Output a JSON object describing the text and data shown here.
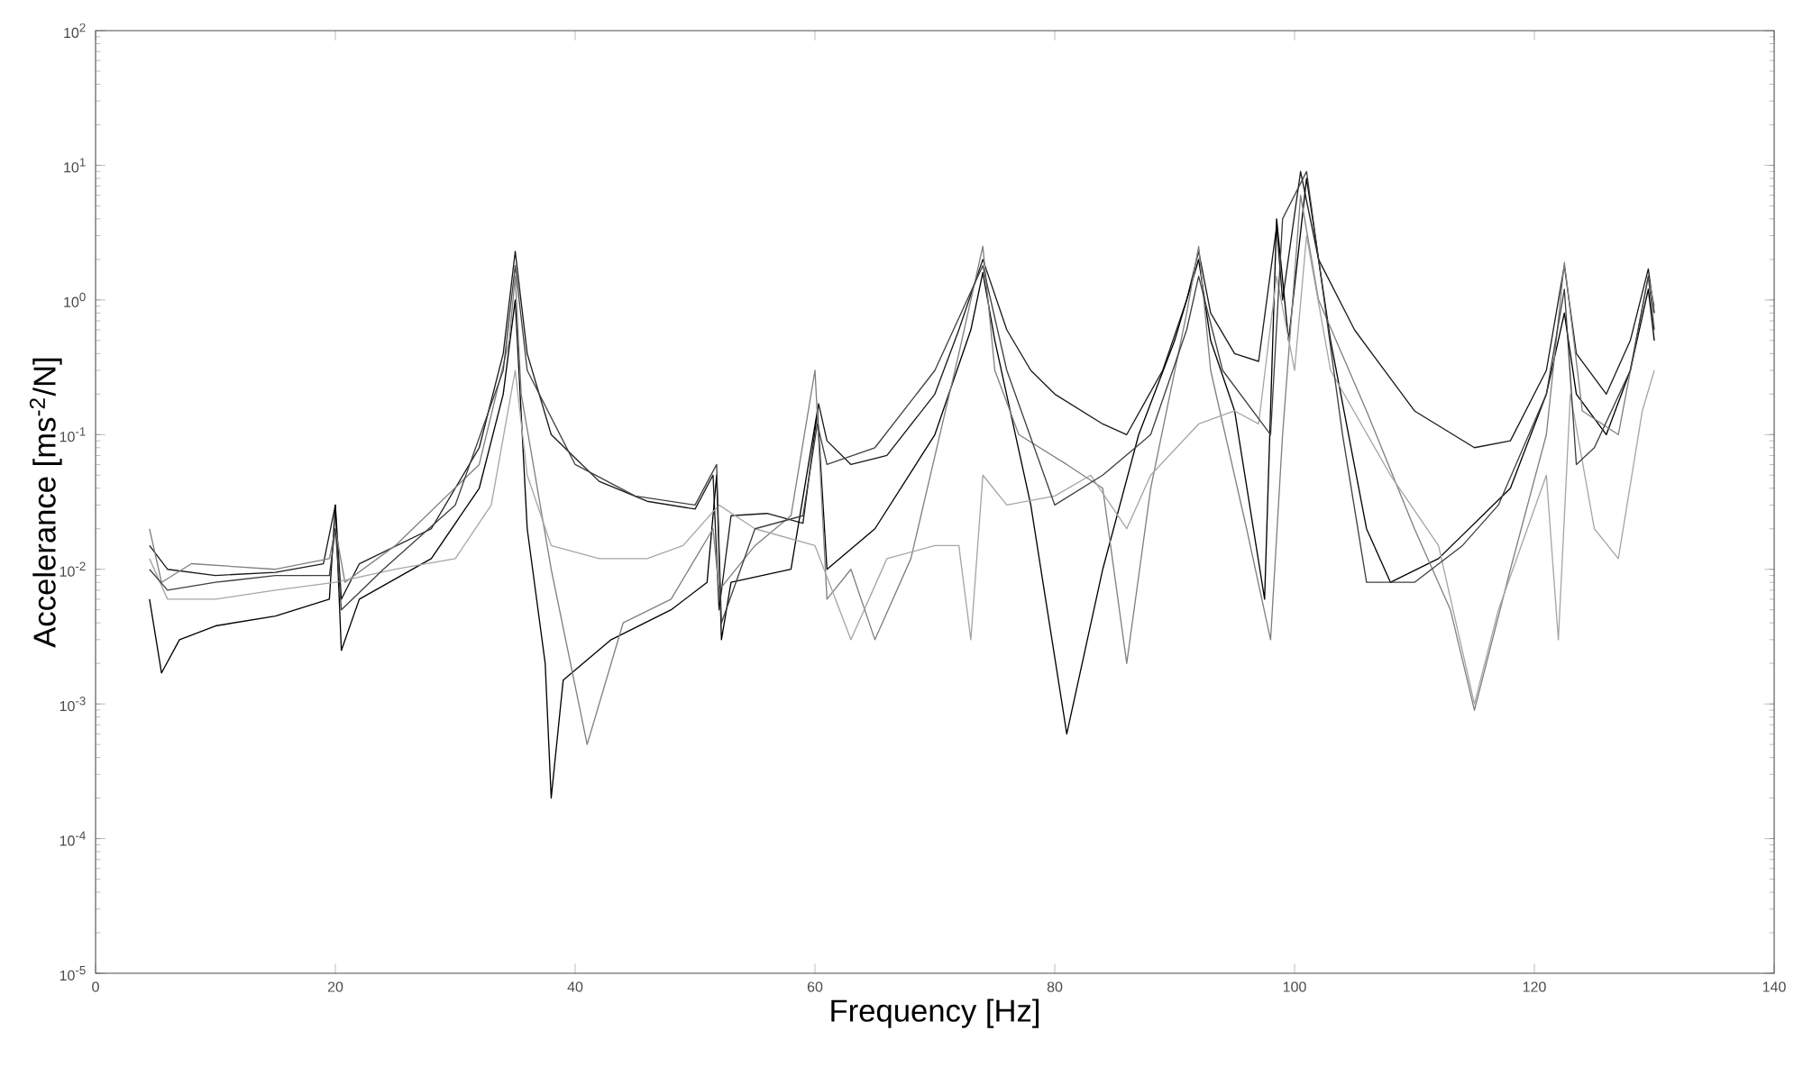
{
  "chart_data": {
    "type": "line",
    "xlabel": "Frequency [Hz]",
    "ylabel": "Accelerance [ms$^{-2}$/N]",
    "log": "y",
    "xlim": [
      0,
      140
    ],
    "xticks": [
      0,
      20,
      40,
      60,
      80,
      100,
      120,
      140
    ],
    "ylim": [
      1e-05,
      100
    ],
    "yticks": [
      {
        "value": 1e-05,
        "label": "10$^{-5}$"
      },
      {
        "value": 0.0001,
        "label": "10$^{-4}$"
      },
      {
        "value": 0.001,
        "label": "10$^{-3}$"
      },
      {
        "value": 0.01,
        "label": "10$^{-2}$"
      },
      {
        "value": 0.1,
        "label": "10$^{-1}$"
      },
      {
        "value": 1,
        "label": "10$^{0}$"
      },
      {
        "value": 10,
        "label": "10$^{1}$"
      },
      {
        "value": 100,
        "label": "10$^{2}$"
      }
    ],
    "series": [
      {
        "color": "#1a1a1a",
        "x": [
          4.5,
          6,
          10,
          15,
          19,
          20,
          20.5,
          22,
          28,
          32,
          34,
          35,
          36,
          38,
          42,
          46,
          50,
          51.5,
          52,
          53,
          56,
          59,
          60.3,
          61,
          63,
          66,
          70,
          72,
          74,
          76,
          78,
          80,
          84,
          86,
          89,
          91,
          92,
          93,
          95,
          97,
          98.5,
          99,
          100.5,
          102,
          105,
          110,
          115,
          118,
          121,
          122.5,
          123.5,
          126,
          128,
          129.5,
          130
        ],
        "values": [
          0.015,
          0.01,
          0.009,
          0.0095,
          0.011,
          0.03,
          0.006,
          0.011,
          0.02,
          0.08,
          0.4,
          2.3,
          0.4,
          0.1,
          0.045,
          0.032,
          0.028,
          0.05,
          0.005,
          0.025,
          0.026,
          0.022,
          0.17,
          0.09,
          0.06,
          0.07,
          0.2,
          0.6,
          2.0,
          0.6,
          0.3,
          0.2,
          0.12,
          0.1,
          0.3,
          1,
          2.3,
          0.8,
          0.4,
          0.35,
          3.5,
          1,
          9,
          2,
          0.6,
          0.15,
          0.08,
          0.09,
          0.3,
          1.8,
          0.4,
          0.2,
          0.5,
          1.7,
          0.8
        ]
      },
      {
        "color": "#000000",
        "x": [
          4.5,
          5.5,
          7,
          10,
          15,
          19.5,
          20,
          20.5,
          22,
          28,
          32,
          34,
          35,
          36,
          37.5,
          38,
          39,
          43,
          48,
          51,
          51.8,
          52.2,
          53,
          58,
          60.2,
          61,
          65,
          70,
          73,
          74,
          75,
          78,
          81,
          84,
          87,
          90,
          92,
          93,
          95,
          97.5,
          98.5,
          99.5,
          101,
          103,
          106,
          108,
          112,
          118,
          121,
          122.5,
          123.5,
          126,
          128,
          129.5,
          130
        ],
        "values": [
          0.006,
          0.0017,
          0.003,
          0.0038,
          0.0045,
          0.006,
          0.03,
          0.0025,
          0.006,
          0.012,
          0.04,
          0.2,
          1.0,
          0.02,
          0.002,
          0.0002,
          0.0015,
          0.003,
          0.005,
          0.008,
          0.05,
          0.003,
          0.008,
          0.01,
          0.15,
          0.01,
          0.02,
          0.1,
          0.6,
          1.6,
          0.5,
          0.03,
          0.0006,
          0.01,
          0.1,
          0.5,
          2.0,
          0.5,
          0.15,
          0.006,
          4,
          0.5,
          8,
          0.5,
          0.02,
          0.008,
          0.012,
          0.04,
          0.2,
          0.8,
          0.2,
          0.1,
          0.3,
          1.2,
          0.5
        ]
      },
      {
        "color": "#808080",
        "x": [
          4.5,
          5.5,
          8,
          15,
          19.5,
          20,
          20.8,
          25,
          32,
          34.5,
          35,
          35.5,
          38,
          41,
          44,
          48,
          51.5,
          52,
          55,
          58,
          60,
          61,
          63,
          65,
          68,
          72,
          74,
          75,
          77,
          81,
          84,
          86,
          88,
          91,
          92,
          93,
          96,
          98,
          99,
          100.5,
          102,
          106,
          110,
          113,
          115,
          118,
          121,
          122.5,
          124,
          127,
          129.5,
          130
        ],
        "values": [
          0.02,
          0.008,
          0.011,
          0.01,
          0.012,
          0.02,
          0.008,
          0.015,
          0.06,
          0.5,
          1.5,
          0.2,
          0.01,
          0.0005,
          0.004,
          0.006,
          0.02,
          0.007,
          0.015,
          0.025,
          0.3,
          0.006,
          0.01,
          0.003,
          0.012,
          0.4,
          2.5,
          0.3,
          0.1,
          0.06,
          0.04,
          0.002,
          0.04,
          0.8,
          2.5,
          0.3,
          0.02,
          0.003,
          0.1,
          6,
          1,
          0.15,
          0.02,
          0.005,
          0.0009,
          0.01,
          0.1,
          1.9,
          0.15,
          0.1,
          1.5,
          0.9
        ]
      },
      {
        "color": "#a6a6a6",
        "x": [
          4.5,
          6,
          10,
          15,
          20,
          25,
          30,
          33,
          35,
          36,
          38,
          42,
          46,
          49,
          52,
          55,
          60,
          63,
          66,
          70,
          72,
          73,
          74,
          76,
          80,
          83,
          86,
          88,
          92,
          95,
          97,
          98.5,
          100,
          101,
          103,
          108,
          112,
          115,
          117,
          121,
          122,
          123,
          125,
          127,
          129,
          130
        ],
        "values": [
          0.012,
          0.006,
          0.006,
          0.007,
          0.008,
          0.01,
          0.012,
          0.03,
          0.3,
          0.05,
          0.015,
          0.012,
          0.012,
          0.015,
          0.03,
          0.02,
          0.015,
          0.003,
          0.012,
          0.015,
          0.015,
          0.003,
          0.05,
          0.03,
          0.035,
          0.05,
          0.02,
          0.05,
          0.12,
          0.15,
          0.12,
          1.5,
          0.3,
          3,
          0.3,
          0.05,
          0.015,
          0.001,
          0.005,
          0.05,
          0.003,
          0.2,
          0.02,
          0.012,
          0.15,
          0.3
        ]
      },
      {
        "color": "#404040",
        "x": [
          4.5,
          6,
          10,
          15,
          19.5,
          20,
          20.5,
          24,
          30,
          34,
          35,
          36,
          40,
          45,
          50,
          51.8,
          52.2,
          55,
          59,
          60.2,
          61,
          65,
          70,
          74,
          76,
          80,
          84,
          88,
          91,
          92,
          94,
          98,
          99,
          101,
          104,
          106,
          110,
          114,
          117,
          121,
          122.5,
          123.5,
          125,
          128,
          129.5,
          130
        ],
        "values": [
          0.01,
          0.007,
          0.008,
          0.009,
          0.009,
          0.02,
          0.005,
          0.01,
          0.03,
          0.3,
          1.8,
          0.3,
          0.06,
          0.035,
          0.03,
          0.06,
          0.004,
          0.02,
          0.025,
          0.12,
          0.06,
          0.08,
          0.3,
          1.8,
          0.3,
          0.03,
          0.05,
          0.1,
          0.6,
          1.5,
          0.3,
          0.1,
          4,
          9,
          0.1,
          0.008,
          0.008,
          0.015,
          0.03,
          0.2,
          1.2,
          0.06,
          0.08,
          0.3,
          1.5,
          0.6
        ]
      }
    ]
  }
}
